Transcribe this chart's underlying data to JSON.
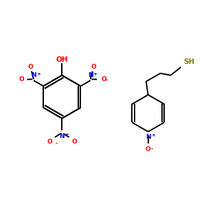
{
  "background_color": "#ffffff",
  "figsize": [
    3.0,
    3.0
  ],
  "dpi": 100,
  "bond_color": "#000000",
  "nitrogen_color": "#0000ff",
  "oxygen_color": "#ff0000",
  "sulfur_color": "#808000",
  "lw": 1.4,
  "font_size": 6.5,
  "xlim": [
    0,
    10
  ],
  "ylim": [
    0,
    10
  ]
}
